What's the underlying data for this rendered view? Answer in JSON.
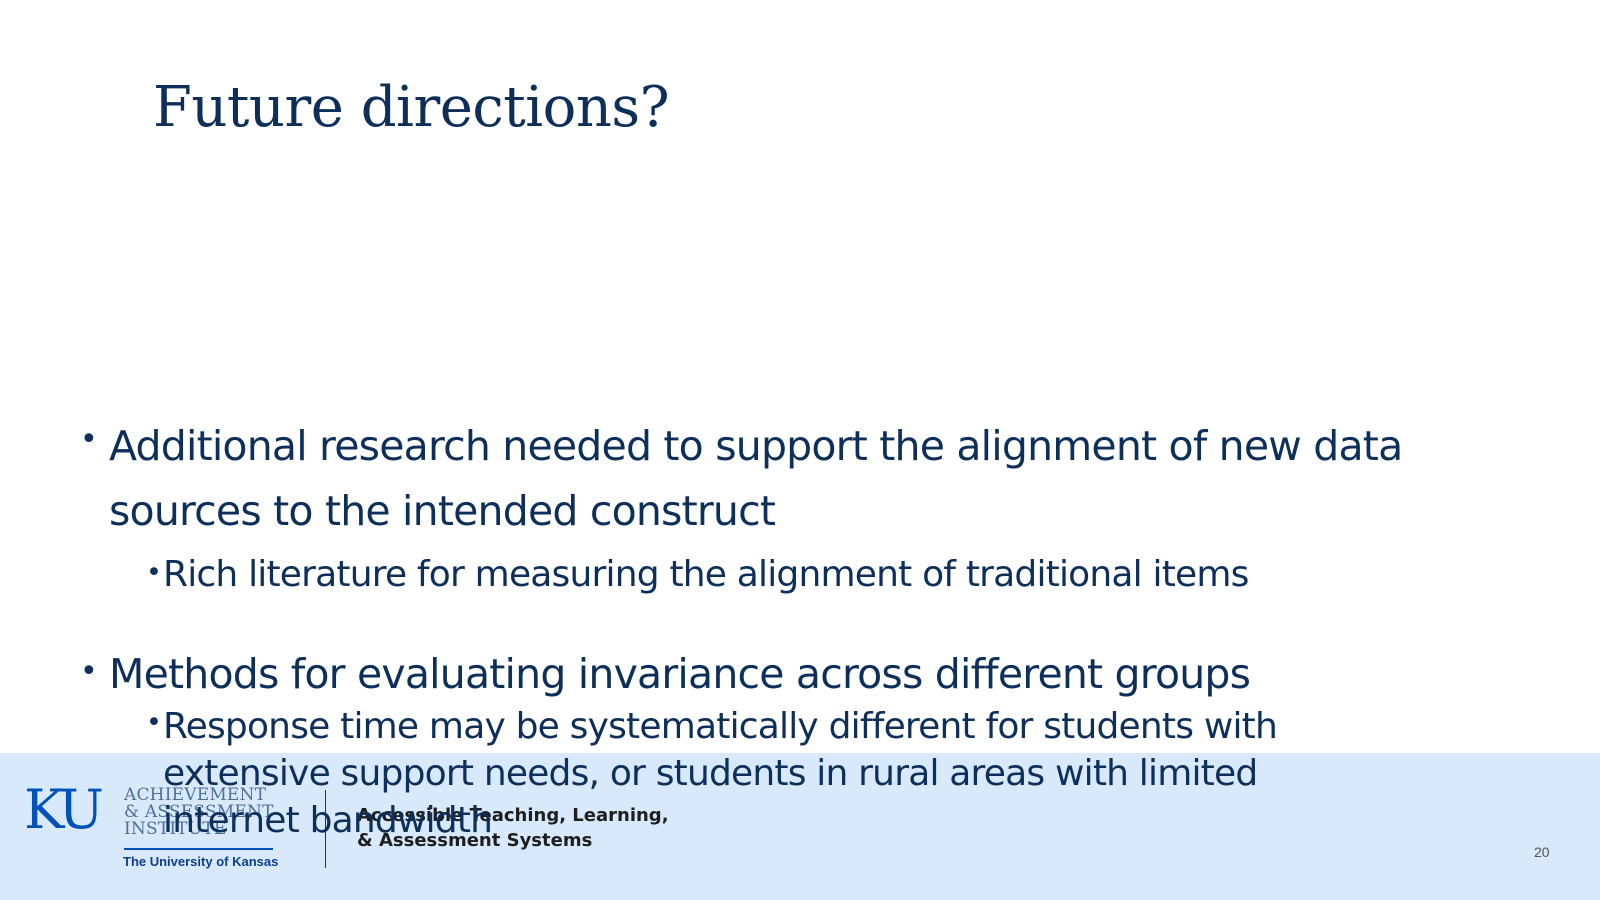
{
  "slide": {
    "title": "Future directions?",
    "page_number": "20"
  },
  "bullets": [
    {
      "text": "Additional research needed to support the alignment of new data sources to the intended construct",
      "sub": [
        "Rich literature for measuring the alignment of traditional items"
      ]
    },
    {
      "text": "Methods for evaluating invariance across different groups",
      "sub": [
        "Response time may be systematically different for students with extensive support needs, or students in rural areas with limited internet bandwidth"
      ]
    }
  ],
  "footer": {
    "ku_logo": "KU",
    "institute_lines": [
      "ACHIEVEMENT",
      "& ASSESSMENT",
      "INSTITUTE"
    ],
    "university": "The University of Kansas",
    "atlas_lines": [
      "Accessible Teaching, Learning,",
      "& Assessment Systems"
    ]
  },
  "colors": {
    "title": "#0d2f5a",
    "body_text": "#0d2f5a",
    "footer_band": "#d7e9fb",
    "ku_blue": "#0051ba"
  }
}
